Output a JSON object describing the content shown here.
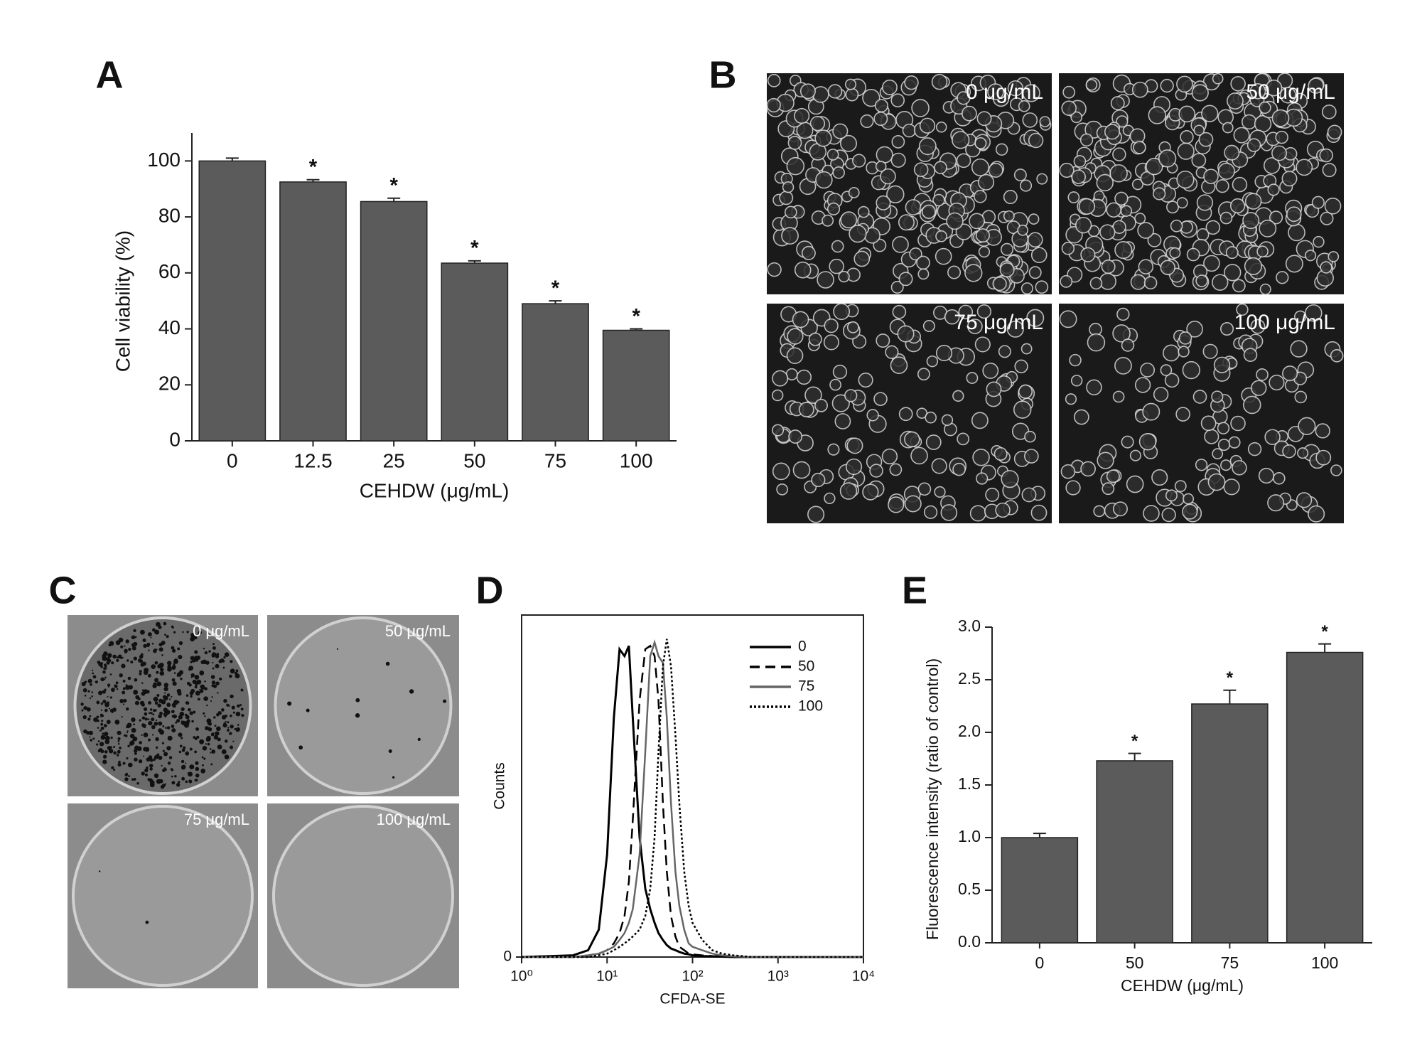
{
  "chart_data": [
    {
      "type": "bar",
      "label": "A",
      "xlabel": "CEHDW (μg/mL)",
      "ylabel": "Cell viability (%)",
      "categories": [
        "0",
        "12.5",
        "25",
        "50",
        "75",
        "100"
      ],
      "values": [
        100,
        92.5,
        85.5,
        63.5,
        49,
        39.5
      ],
      "errors": [
        1,
        0.8,
        1.2,
        0.8,
        1,
        0.5
      ],
      "annotations": [
        null,
        "*",
        "*",
        "*",
        "*",
        "*"
      ],
      "color": "#5b5b5b",
      "ylim": [
        0,
        110
      ],
      "yticks": [
        0,
        20,
        40,
        60,
        80,
        100
      ]
    },
    {
      "type": "line",
      "label": "D",
      "xlabel": "CFDA-SE",
      "ylabel": "Counts",
      "xscale": "log",
      "legend": "upper right",
      "x": [
        1,
        4,
        6,
        8,
        10,
        12,
        14,
        16,
        18,
        20,
        24,
        28,
        32,
        36,
        40,
        45,
        50,
        56,
        63,
        70,
        80,
        90,
        100,
        130,
        170,
        220,
        300,
        500,
        1000,
        10000
      ],
      "series": [
        {
          "name": "0",
          "color": "#000000",
          "dash": "solid",
          "values": [
            0,
            0.5,
            2,
            8,
            30,
            70,
            90,
            88,
            91,
            70,
            35,
            20,
            14,
            10,
            7,
            5,
            3.5,
            2.5,
            2,
            1.5,
            1,
            0.8,
            0.5,
            0.3,
            0.2,
            0.1,
            0,
            0,
            0,
            0
          ]
        },
        {
          "name": "50",
          "color": "#000000",
          "dash": "dashed",
          "values": [
            0,
            0,
            0.5,
            1,
            2,
            4,
            7,
            12,
            22,
            40,
            75,
            90,
            91,
            88,
            75,
            45,
            25,
            12,
            6,
            3,
            2,
            1,
            0.8,
            0.5,
            0.3,
            0.2,
            0.1,
            0,
            0,
            0
          ]
        },
        {
          "name": "75",
          "color": "#666666",
          "dash": "solid",
          "values": [
            0,
            0,
            0.5,
            1,
            2,
            3,
            5,
            7,
            10,
            14,
            30,
            60,
            88,
            92,
            88,
            86,
            70,
            45,
            25,
            15,
            8,
            4,
            3,
            2,
            1,
            0.5,
            0.2,
            0,
            0,
            0
          ]
        },
        {
          "name": "100",
          "color": "#000000",
          "dash": "dotted",
          "values": [
            0,
            0,
            0,
            0.5,
            1,
            2,
            3,
            4,
            5,
            6,
            8,
            12,
            20,
            35,
            60,
            85,
            93,
            85,
            65,
            45,
            25,
            15,
            10,
            5,
            2,
            1,
            0.5,
            0,
            0,
            0
          ]
        }
      ],
      "xlim": [
        1,
        10000
      ],
      "xticks": [
        {
          "value": 1,
          "label": "10⁰"
        },
        {
          "value": 10,
          "label": "10¹"
        },
        {
          "value": 100,
          "label": "10²"
        },
        {
          "value": 1000,
          "label": "10³"
        },
        {
          "value": 10000,
          "label": "10⁴"
        }
      ],
      "ylim": [
        0,
        100
      ],
      "yticks": [
        0
      ]
    },
    {
      "type": "bar",
      "label": "E",
      "xlabel": "CEHDW (μg/mL)",
      "ylabel": "Fluorescence intensity (ratio of control)",
      "categories": [
        "0",
        "50",
        "75",
        "100"
      ],
      "values": [
        1.0,
        1.73,
        2.27,
        2.76
      ],
      "errors": [
        0.04,
        0.07,
        0.13,
        0.08
      ],
      "annotations": [
        null,
        "*",
        "*",
        "*"
      ],
      "color": "#5b5b5b",
      "ylim": [
        0,
        3.0
      ],
      "yticks": [
        {
          "value": 0,
          "label": "0.0"
        },
        {
          "value": 0.5,
          "label": "0.5"
        },
        {
          "value": 1,
          "label": "1.0"
        },
        {
          "value": 1.5,
          "label": "1.5"
        },
        {
          "value": 2,
          "label": "2.0"
        },
        {
          "value": 2.5,
          "label": "2.5"
        },
        {
          "value": 3,
          "label": "3.0"
        }
      ]
    }
  ],
  "image_panels": [
    {
      "label": "B",
      "captions": [
        "0 μg/mL",
        "50 μg/mL",
        "75 μg/mL",
        "100 μg/mL"
      ]
    },
    {
      "label": "C",
      "captions": [
        "0 μg/mL",
        "50 μg/mL",
        "75 μg/mL",
        "100 μg/mL"
      ]
    }
  ]
}
